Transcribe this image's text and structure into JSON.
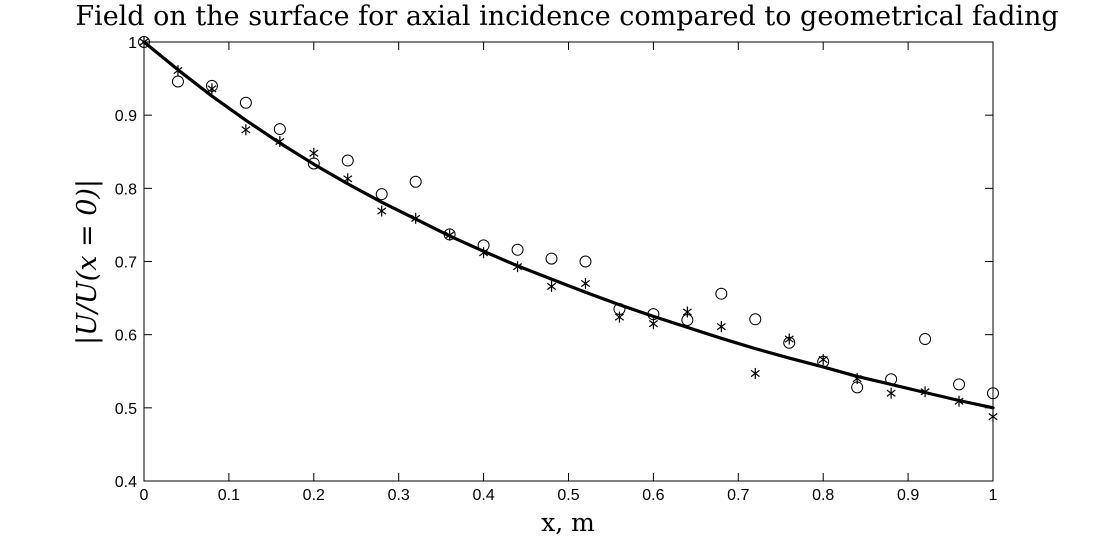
{
  "chart_data": {
    "type": "line",
    "title": "Field on the surface for axial incidence compared to geometrical fading",
    "xlabel": "x, m",
    "ylabel": "|U/U(x = 0)|",
    "xlim": [
      0,
      1
    ],
    "ylim": [
      0.4,
      1
    ],
    "xticks": [
      "0",
      "0.1",
      "0.2",
      "0.3",
      "0.4",
      "0.5",
      "0.6",
      "0.7",
      "0.8",
      "0.9",
      "1"
    ],
    "yticks": [
      "0.4",
      "0.5",
      "0.6",
      "0.7",
      "0.8",
      "0.9",
      "1"
    ],
    "grid": false,
    "legend": "none",
    "series": [
      {
        "marker": "line",
        "x": [
          0,
          0.04,
          0.08,
          0.12,
          0.16,
          0.2,
          0.24,
          0.28,
          0.32,
          0.36,
          0.4,
          0.44,
          0.48,
          0.52,
          0.56,
          0.6,
          0.64,
          0.68,
          0.72,
          0.76,
          0.8,
          0.84,
          0.88,
          0.92,
          0.96,
          1.0
        ],
        "y": [
          1.0,
          0.962,
          0.926,
          0.893,
          0.862,
          0.833,
          0.806,
          0.781,
          0.758,
          0.735,
          0.714,
          0.694,
          0.676,
          0.658,
          0.641,
          0.625,
          0.61,
          0.595,
          0.581,
          0.568,
          0.556,
          0.543,
          0.532,
          0.521,
          0.51,
          0.5
        ]
      },
      {
        "marker": "circle",
        "x": [
          0,
          0.04,
          0.08,
          0.12,
          0.16,
          0.2,
          0.24,
          0.28,
          0.32,
          0.36,
          0.4,
          0.44,
          0.48,
          0.52,
          0.56,
          0.6,
          0.64,
          0.68,
          0.72,
          0.76,
          0.8,
          0.84,
          0.88,
          0.92,
          0.96,
          1.0
        ],
        "y": [
          1.0,
          0.946,
          0.94,
          0.917,
          0.881,
          0.834,
          0.838,
          0.792,
          0.809,
          0.737,
          0.722,
          0.716,
          0.704,
          0.7,
          0.635,
          0.628,
          0.62,
          0.656,
          0.621,
          0.589,
          0.563,
          0.528,
          0.539,
          0.594,
          0.532,
          0.52
        ]
      },
      {
        "marker": "asterisk",
        "x": [
          0,
          0.04,
          0.08,
          0.12,
          0.16,
          0.2,
          0.24,
          0.28,
          0.32,
          0.36,
          0.4,
          0.44,
          0.48,
          0.52,
          0.56,
          0.6,
          0.64,
          0.68,
          0.72,
          0.76,
          0.8,
          0.84,
          0.88,
          0.92,
          0.96,
          1.0
        ],
        "y": [
          1.0,
          0.961,
          0.936,
          0.88,
          0.864,
          0.848,
          0.813,
          0.769,
          0.759,
          0.736,
          0.712,
          0.693,
          0.666,
          0.67,
          0.624,
          0.615,
          0.631,
          0.611,
          0.547,
          0.594,
          0.566,
          0.54,
          0.52,
          0.522,
          0.509,
          0.488
        ]
      }
    ]
  }
}
